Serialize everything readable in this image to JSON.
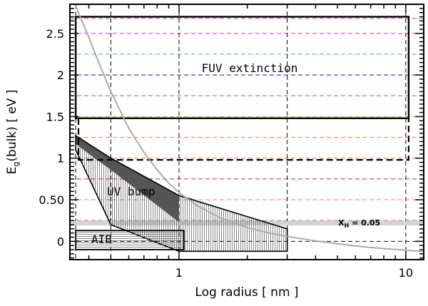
{
  "chart_data": {
    "type": "line",
    "xscale": "log",
    "xlim": [
      0.33,
      12
    ],
    "ylim": [
      -0.22,
      2.85
    ],
    "xlabel": "Log radius [ nm ]",
    "ylabel": "E_g(bulk) [ eV ]",
    "ylabel_parts": {
      "main": "E",
      "sub": "g",
      "rest": "(bulk) [ eV ]"
    },
    "xticks": [
      {
        "value": 1,
        "label": "1"
      },
      {
        "value": 10,
        "label": "10"
      }
    ],
    "yticks": [
      {
        "value": 0,
        "label": "0"
      },
      {
        "value": 0.5,
        "label": "0.50"
      },
      {
        "value": 1,
        "label": "1"
      },
      {
        "value": 1.5,
        "label": "1.5"
      },
      {
        "value": 2,
        "label": "2"
      },
      {
        "value": 2.5,
        "label": "2.5"
      }
    ],
    "vertical_dashed_lines": [
      0.35,
      0.5,
      1,
      3,
      10
    ],
    "horizontal_dashed_lines": [
      {
        "y": 2.68,
        "color": "#cc33cc"
      },
      {
        "y": 2.5,
        "color": "#cc33cc"
      },
      {
        "y": 2.25,
        "color": "#33aadd"
      },
      {
        "y": 2.0,
        "color": "#1111bb"
      },
      {
        "y": 1.75,
        "color": "#22aa22"
      },
      {
        "y": 1.5,
        "color": "#ddaa00"
      },
      {
        "y": 1.25,
        "color": "#ee7733"
      },
      {
        "y": 1.0,
        "color": "#ee7733"
      },
      {
        "y": 0.75,
        "color": "#dd2222"
      },
      {
        "y": 0.5,
        "color": "#ee66cc"
      },
      {
        "y": 0.25,
        "color": "#dd2222"
      },
      {
        "y": 0.0,
        "color": "#111111"
      }
    ],
    "curve": {
      "color": "#aaaaaa",
      "x": [
        0.35,
        0.4,
        0.45,
        0.5,
        0.6,
        0.7,
        0.8,
        0.9,
        1.0,
        1.2,
        1.5,
        2.0,
        2.5,
        3.0,
        4.0,
        5.0,
        6.0,
        7.0,
        8.0,
        10.0,
        12.0
      ],
      "y": [
        2.83,
        2.45,
        2.1,
        1.8,
        1.36,
        1.07,
        0.86,
        0.7,
        0.585,
        0.43,
        0.29,
        0.165,
        0.1,
        0.06,
        0.005,
        -0.03,
        -0.055,
        -0.073,
        -0.087,
        -0.107,
        -0.122
      ]
    },
    "reference_band": {
      "y": 0.22,
      "label_main": "X",
      "label_sub": "H",
      "label_rest": " = 0.05",
      "color": "#cccccc"
    },
    "regions": {
      "fuv": {
        "label": "FUV extinction",
        "solid_rect": {
          "x": [
            0.35,
            10.3
          ],
          "y": [
            1.48,
            2.7
          ]
        },
        "dashed_rect": {
          "x": [
            0.36,
            10.3
          ],
          "y": [
            0.98,
            1.48
          ]
        }
      },
      "uv_bump": {
        "label": "UV bump",
        "outline": [
          [
            0.35,
            1.27
          ],
          [
            0.5,
            1.0
          ],
          [
            1.0,
            0.55
          ],
          [
            3.0,
            0.15
          ],
          [
            3.0,
            -0.12
          ],
          [
            1.0,
            -0.12
          ],
          [
            0.5,
            0.2
          ],
          [
            0.35,
            1.1
          ]
        ],
        "dark_band": [
          [
            0.35,
            1.27
          ],
          [
            0.5,
            1.0
          ],
          [
            1.0,
            0.55
          ],
          [
            1.0,
            0.23
          ],
          [
            0.5,
            0.86
          ],
          [
            0.35,
            1.17
          ]
        ]
      },
      "aib": {
        "label": "AIB",
        "rect": {
          "x": [
            0.35,
            1.05
          ],
          "y": [
            -0.1,
            0.13
          ]
        }
      }
    }
  }
}
